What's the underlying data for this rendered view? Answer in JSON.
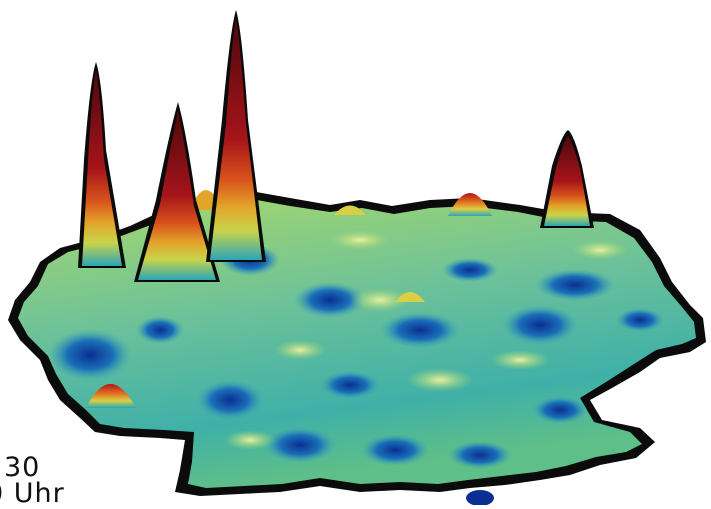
{
  "labels": {
    "time_value": "30",
    "time_unit": "0 Uhr"
  },
  "palette": {
    "outline": "#0b0b0b",
    "surface_light": "#a8d96a",
    "surface_mid": "#6cc19a",
    "surface_teal": "#2aa6b6",
    "surface_blue": "#0b3fa8",
    "peak_yellow": "#e2d24a",
    "peak_orange": "#e2721f",
    "peak_red": "#b3141a",
    "peak_dark": "#5a0a0f"
  }
}
